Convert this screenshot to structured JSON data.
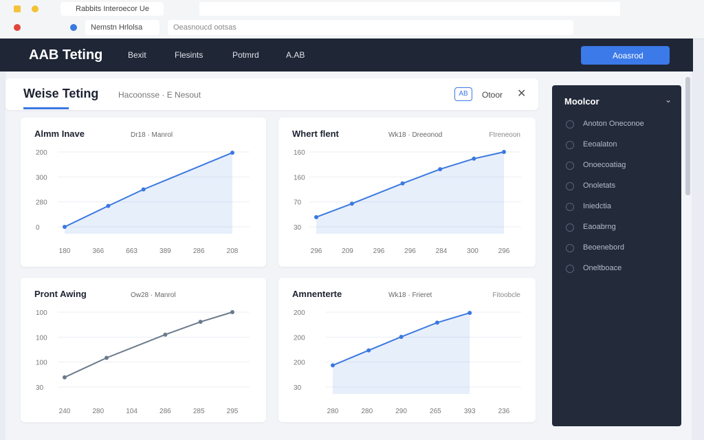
{
  "browser": {
    "tab_title": "Rabbits Interoecor Ue",
    "bookmark": "Nemstn Hrlolsa",
    "address": "Oeasnoucd ootsas"
  },
  "app": {
    "logo": "AAB Teting",
    "nav": [
      "Bexit",
      "Flesints",
      "Potmrd",
      "A.AB"
    ],
    "button": "Aoasrod"
  },
  "panel": {
    "title": "Weise Teting",
    "breadcrumb": "Hacoonsse · E Nesout",
    "badge": "AB",
    "action": "Otoor"
  },
  "sidebar": {
    "title": "Moolcor",
    "items": [
      "Anoton Oneconoe",
      "Eeoalaton",
      "Onoecoatiag",
      "Onoletats",
      "Iniedctia",
      "Eaoabrng",
      "Beoenebord",
      "Oneltboace"
    ]
  },
  "chart_data": [
    {
      "type": "line",
      "title": "Almm Inave",
      "subtitle": "Dr18 · Manrol",
      "y_labels": [
        "200",
        "300",
        "280",
        "0"
      ],
      "x_labels": [
        "180",
        "366",
        "663",
        "389",
        "286",
        "208"
      ],
      "x": [
        0,
        26,
        47,
        100
      ],
      "values": [
        0,
        28,
        50,
        99
      ],
      "xlim": [
        0,
        100
      ],
      "ylim": [
        0,
        100
      ],
      "color": "#3b78e0",
      "area": true
    },
    {
      "type": "line",
      "title": "Whert flent",
      "subtitle": "Wk18 · Dreeonod",
      "note": "Ftreneoon",
      "y_labels": [
        "160",
        "160",
        "70",
        "30"
      ],
      "x_labels": [
        "296",
        "209",
        "296",
        "296",
        "284",
        "300",
        "296"
      ],
      "x": [
        0,
        19,
        46,
        66,
        84,
        100
      ],
      "values": [
        13,
        31,
        58,
        77,
        91,
        100
      ],
      "xlim": [
        0,
        100
      ],
      "ylim": [
        0,
        100
      ],
      "color": "#3b78e0",
      "area": true
    },
    {
      "type": "line",
      "title": "Pront Awing",
      "subtitle": "Ow28 · Manrol",
      "y_labels": [
        "100",
        "100",
        "100",
        "30"
      ],
      "x_labels": [
        "240",
        "280",
        "104",
        "286",
        "285",
        "295"
      ],
      "x": [
        0,
        25,
        60,
        81,
        100
      ],
      "values": [
        13,
        39,
        70,
        87,
        100
      ],
      "xlim": [
        0,
        100
      ],
      "ylim": [
        0,
        100
      ],
      "color": "#6b7a8c",
      "area": false
    },
    {
      "type": "line",
      "title": "Amnenterte",
      "subtitle": "Wk18 · Frieret",
      "note": "Fitoobcle",
      "y_labels": [
        "200",
        "200",
        "200",
        "30"
      ],
      "x_labels": [
        "280",
        "280",
        "290",
        "265",
        "393",
        "236"
      ],
      "x": [
        0,
        21,
        40,
        61,
        80
      ],
      "values": [
        29,
        49,
        67,
        86,
        99
      ],
      "xlim": [
        0,
        100
      ],
      "ylim": [
        0,
        100
      ],
      "color": "#3b78e0",
      "area": true
    }
  ]
}
